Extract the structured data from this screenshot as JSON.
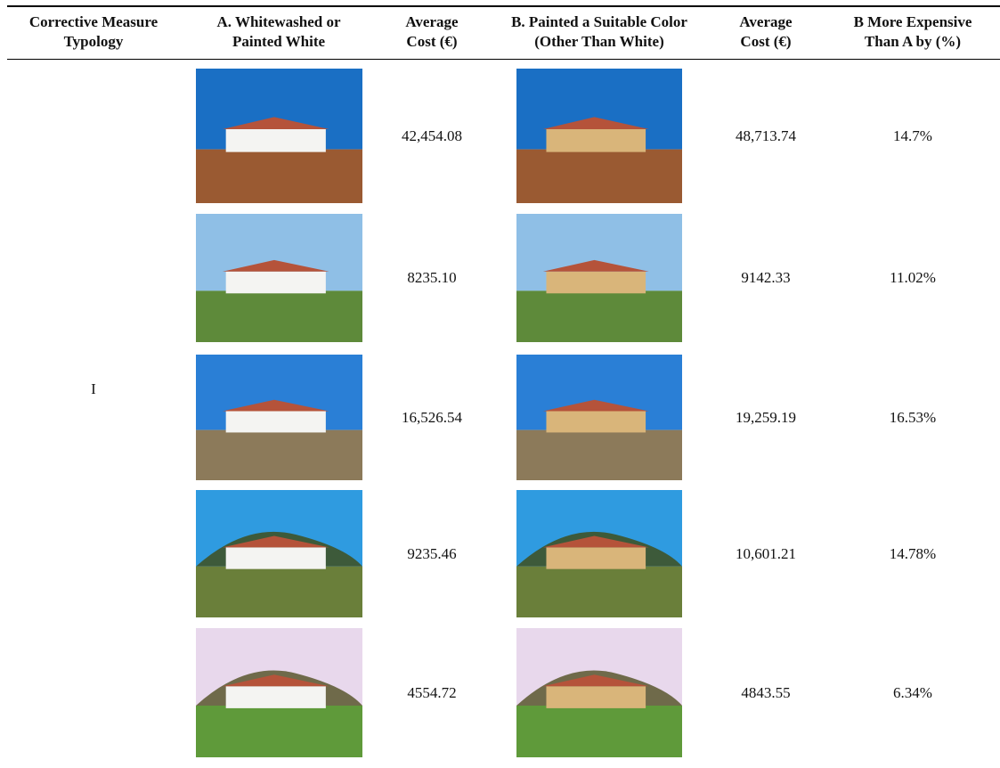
{
  "table": {
    "header": [
      "Corrective Measure Typology",
      "A. Whitewashed or Painted White",
      "Average Cost (€)",
      "B. Painted a Suitable Color (Other Than White)",
      "Average Cost (€)",
      "B More Expensive Than A by (%)"
    ],
    "typology": "I",
    "rows": [
      {
        "cost_a": "42,454.08",
        "cost_b": "48,713.74",
        "difference": "14.7%"
      },
      {
        "cost_a": "8235.10",
        "cost_b": "9142.33",
        "difference": "11.02%"
      },
      {
        "cost_a": "16,526.54",
        "cost_b": "19,259.19",
        "difference": "16.53%"
      },
      {
        "cost_a": "9235.46",
        "cost_b": "10,601.21",
        "difference": "14.78%"
      },
      {
        "cost_a": "4554.72",
        "cost_b": "4843.55",
        "difference": "6.34%"
      }
    ]
  }
}
